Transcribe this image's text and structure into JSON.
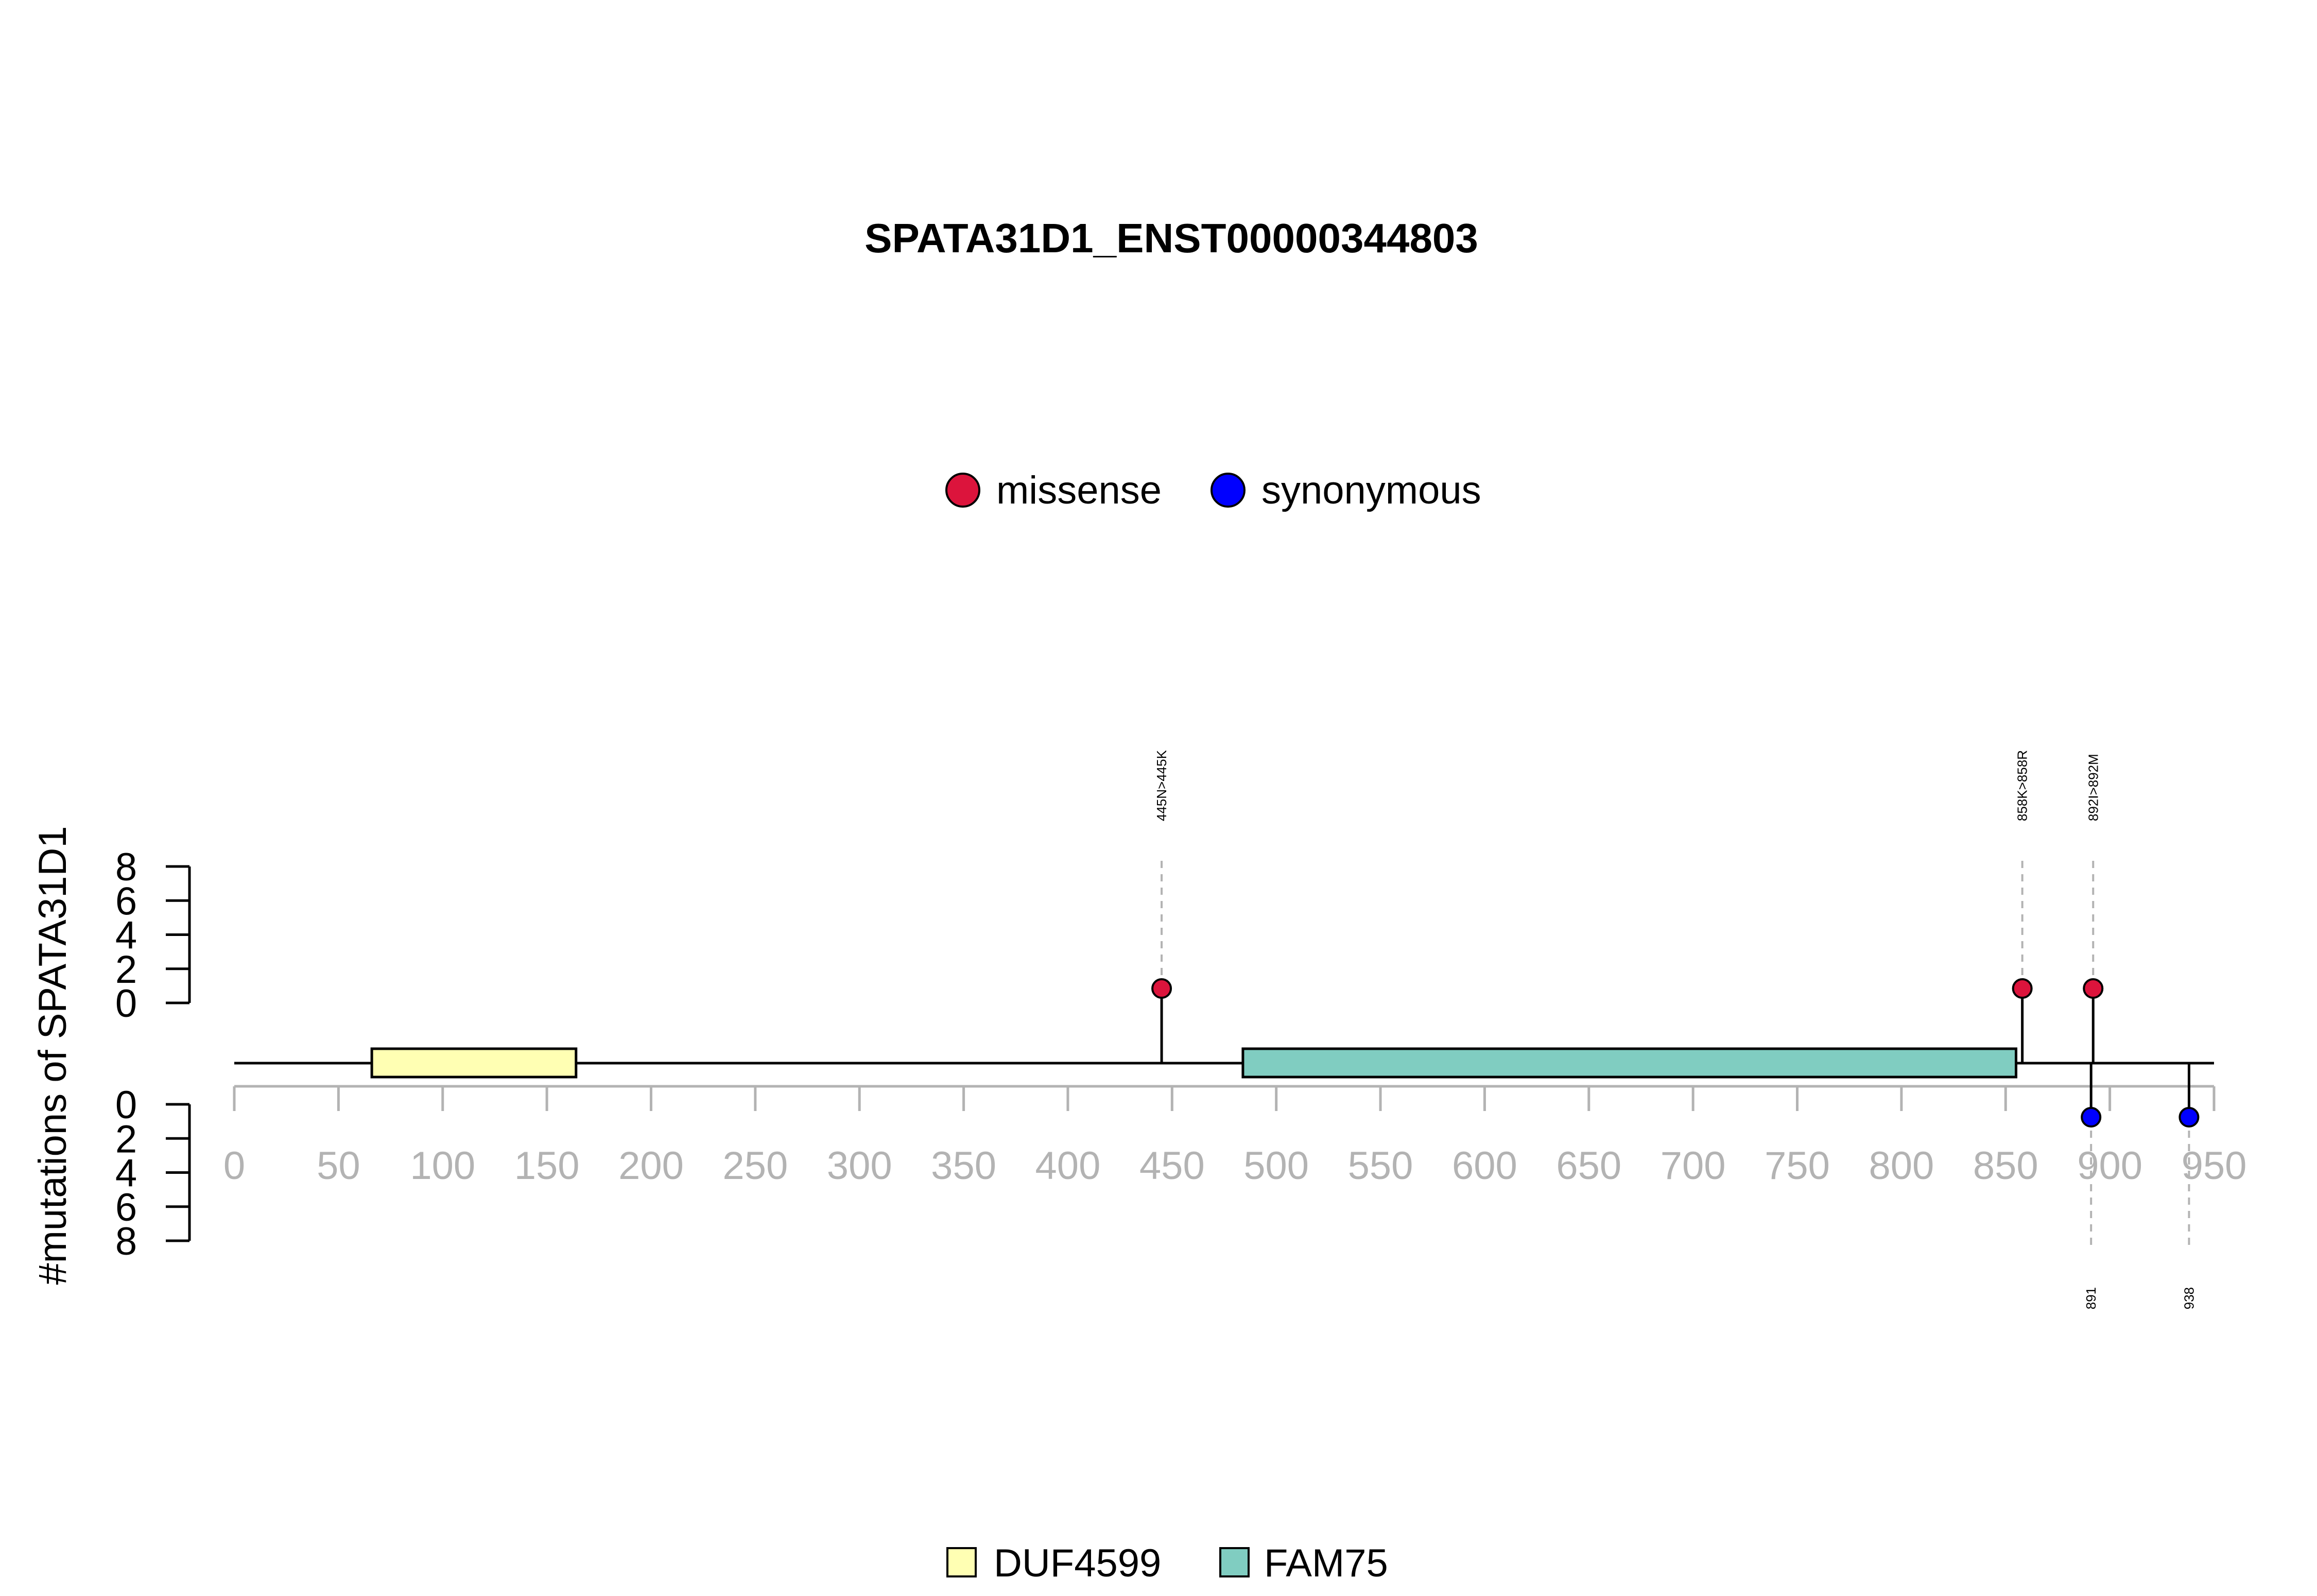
{
  "chart_data": {
    "type": "lollipop",
    "title": "SPATA31D1_ENST00000344803",
    "ylabel": "#mutations of SPATA31D1",
    "xlim": [
      0,
      950
    ],
    "x_ticks": [
      0,
      50,
      100,
      150,
      200,
      250,
      300,
      350,
      400,
      450,
      500,
      550,
      600,
      650,
      700,
      750,
      800,
      850,
      900,
      950
    ],
    "y_top_ticks": [
      0,
      2,
      4,
      6,
      8
    ],
    "y_bottom_ticks": [
      0,
      2,
      4,
      6,
      8
    ],
    "mutation_legend": [
      {
        "label": "missense",
        "color": "#DC143C"
      },
      {
        "label": "synonymous",
        "color": "#0000FF"
      }
    ],
    "domain_legend": [
      {
        "label": "DUF4599",
        "color": "#FFFFB3"
      },
      {
        "label": "FAM75",
        "color": "#80CDC1"
      }
    ],
    "domains": [
      {
        "name": "DUF4599",
        "start": 66,
        "end": 164,
        "color": "#FFFFB3"
      },
      {
        "name": "FAM75",
        "start": 484,
        "end": 855,
        "color": "#80CDC1"
      }
    ],
    "mutations": [
      {
        "position": 445,
        "count": 1,
        "type": "missense",
        "label": "445N>445K",
        "side": "top"
      },
      {
        "position": 858,
        "count": 1,
        "type": "missense",
        "label": "858K>858R",
        "side": "top"
      },
      {
        "position": 892,
        "count": 1,
        "type": "missense",
        "label": "892I>892M",
        "side": "top"
      },
      {
        "position": 891,
        "count": 1,
        "type": "synonymous",
        "label": "891",
        "side": "bottom"
      },
      {
        "position": 938,
        "count": 1,
        "type": "synonymous",
        "label": "938",
        "side": "bottom"
      }
    ]
  }
}
